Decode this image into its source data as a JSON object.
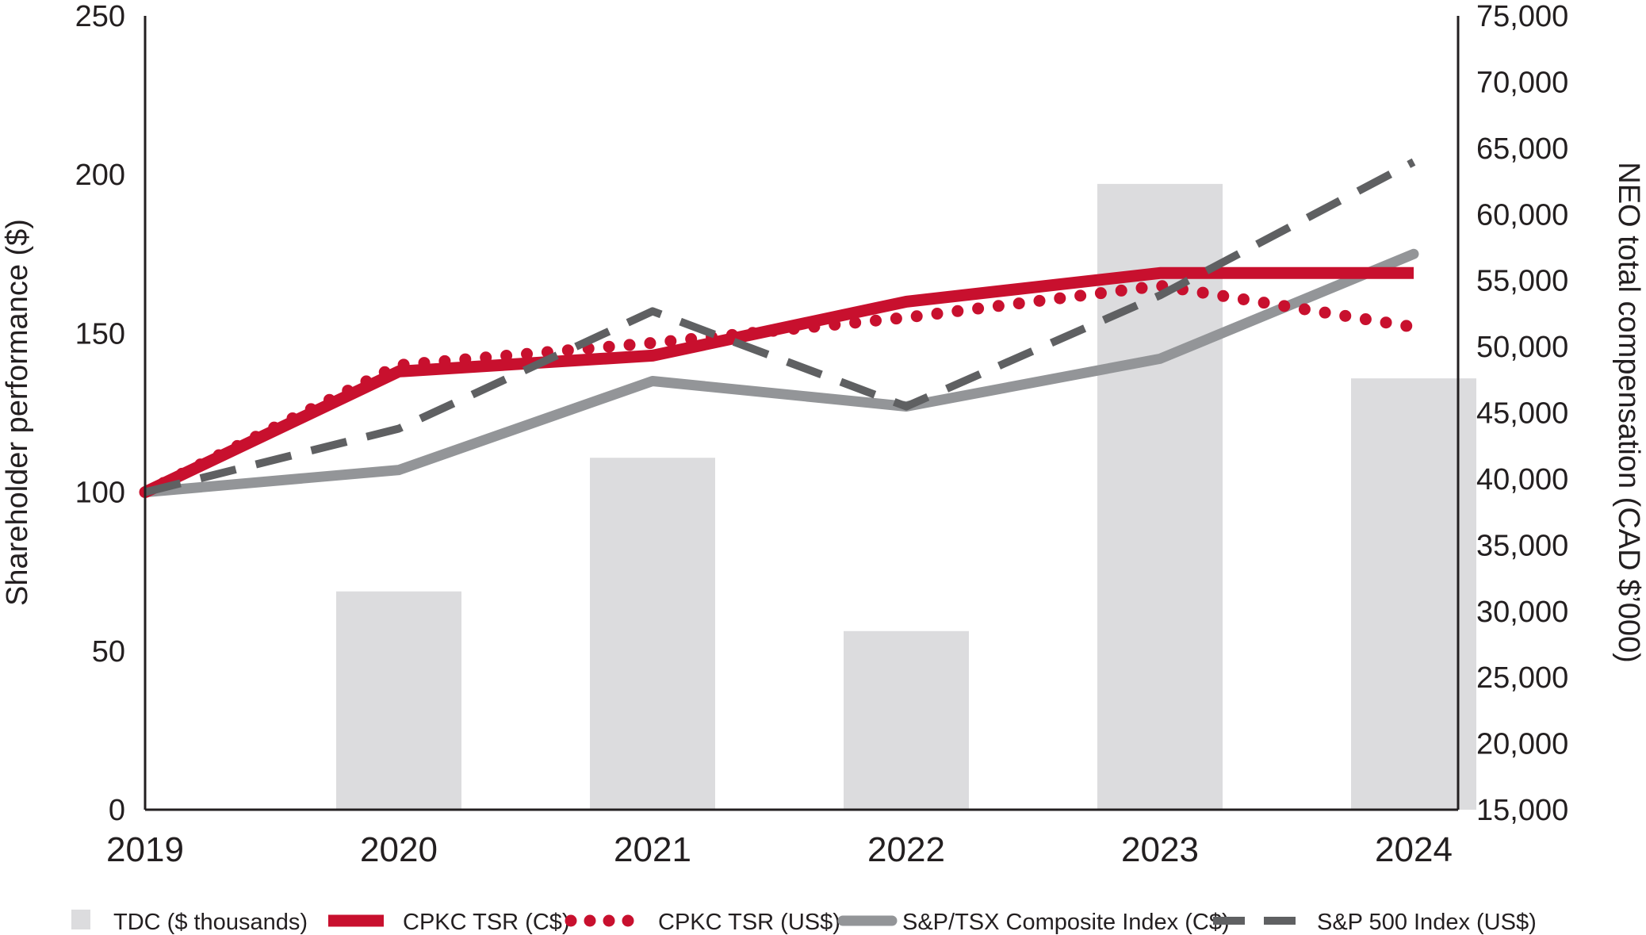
{
  "chart_data": {
    "type": "bar+line",
    "x_labels": [
      "2019",
      "2020",
      "2021",
      "2022",
      "2023",
      "2024"
    ],
    "left_axis": {
      "title": "Shareholder performance ($)",
      "range": [
        0,
        250
      ],
      "ticks": [
        0,
        50,
        100,
        150,
        200,
        250
      ]
    },
    "right_axis": {
      "title": "NEO total compensation (CAD $’000)",
      "range": [
        15000,
        75000
      ],
      "ticks": [
        "15,000",
        "20,000",
        "25,000",
        "30,000",
        "35,000",
        "40,000",
        "45,000",
        "50,000",
        "55,000",
        "60,000",
        "65,000",
        "70,000",
        "75,000"
      ],
      "tick_values": [
        15000,
        20000,
        25000,
        30000,
        35000,
        40000,
        45000,
        50000,
        55000,
        60000,
        65000,
        70000,
        75000
      ]
    },
    "bars": {
      "name": "TDC ($ thousands)",
      "color": "#dcdcde",
      "axis": "right",
      "categories": [
        "2020",
        "2021",
        "2022",
        "2023",
        "2024"
      ],
      "values": [
        31500,
        41600,
        28500,
        62300,
        47600
      ]
    },
    "series": [
      {
        "name": "CPKC TSR (C$)",
        "color": "#c8102e",
        "style": "solid-thick",
        "axis": "left",
        "values": [
          100,
          138,
          143,
          160,
          169,
          169
        ]
      },
      {
        "name": "CPKC TSR (US$)",
        "color": "#c8102e",
        "style": "dotted",
        "axis": "left",
        "values": [
          100,
          140,
          147,
          155,
          165,
          152
        ]
      },
      {
        "name": "S&P/TSX Composite Index (C$)",
        "color": "#939598",
        "style": "solid",
        "axis": "left",
        "values": [
          100,
          107,
          135,
          127,
          142,
          175
        ]
      },
      {
        "name": "S&P 500 Index (US$)",
        "color": "#5f6062",
        "style": "dashed",
        "axis": "left",
        "values": [
          100,
          120,
          157,
          127,
          162,
          204
        ]
      }
    ],
    "legend_position": "bottom",
    "grid": false
  }
}
